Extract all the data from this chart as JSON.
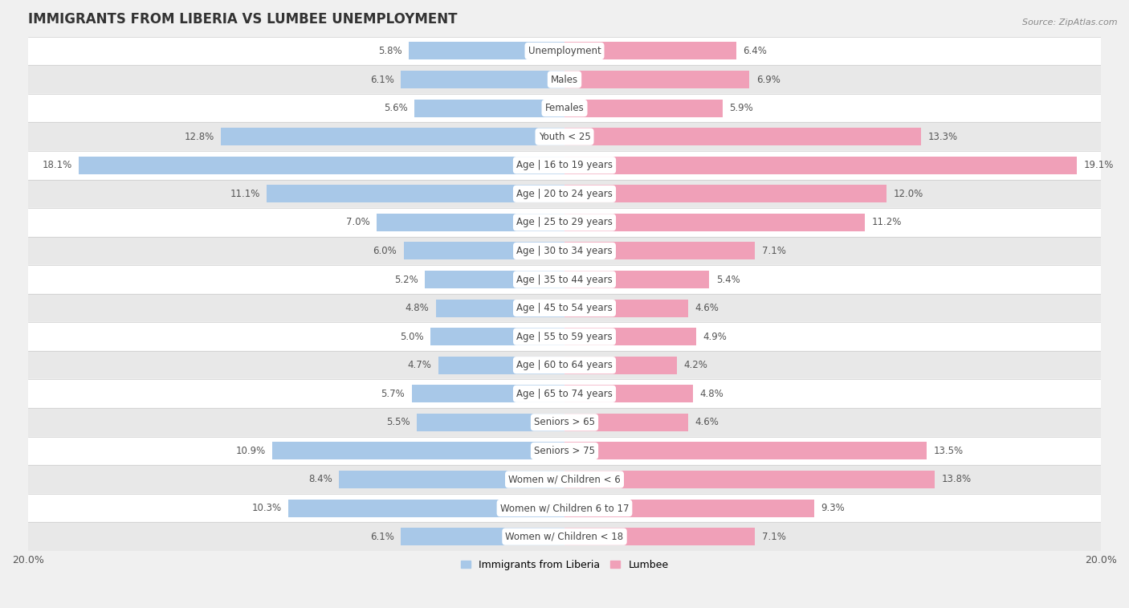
{
  "title": "IMMIGRANTS FROM LIBERIA VS LUMBEE UNEMPLOYMENT",
  "source": "Source: ZipAtlas.com",
  "categories": [
    "Unemployment",
    "Males",
    "Females",
    "Youth < 25",
    "Age | 16 to 19 years",
    "Age | 20 to 24 years",
    "Age | 25 to 29 years",
    "Age | 30 to 34 years",
    "Age | 35 to 44 years",
    "Age | 45 to 54 years",
    "Age | 55 to 59 years",
    "Age | 60 to 64 years",
    "Age | 65 to 74 years",
    "Seniors > 65",
    "Seniors > 75",
    "Women w/ Children < 6",
    "Women w/ Children 6 to 17",
    "Women w/ Children < 18"
  ],
  "liberia": [
    5.8,
    6.1,
    5.6,
    12.8,
    18.1,
    11.1,
    7.0,
    6.0,
    5.2,
    4.8,
    5.0,
    4.7,
    5.7,
    5.5,
    10.9,
    8.4,
    10.3,
    6.1
  ],
  "lumbee": [
    6.4,
    6.9,
    5.9,
    13.3,
    19.1,
    12.0,
    11.2,
    7.1,
    5.4,
    4.6,
    4.9,
    4.2,
    4.8,
    4.6,
    13.5,
    13.8,
    9.3,
    7.1
  ],
  "liberia_color": "#a8c8e8",
  "lumbee_color": "#f0a0b8",
  "axis_max": 20.0,
  "row_bg_light": "#ffffff",
  "row_bg_dark": "#e8e8e8",
  "row_separator": "#cccccc",
  "legend_liberia": "Immigrants from Liberia",
  "legend_lumbee": "Lumbee",
  "bar_height": 0.62,
  "fig_bg": "#f0f0f0"
}
